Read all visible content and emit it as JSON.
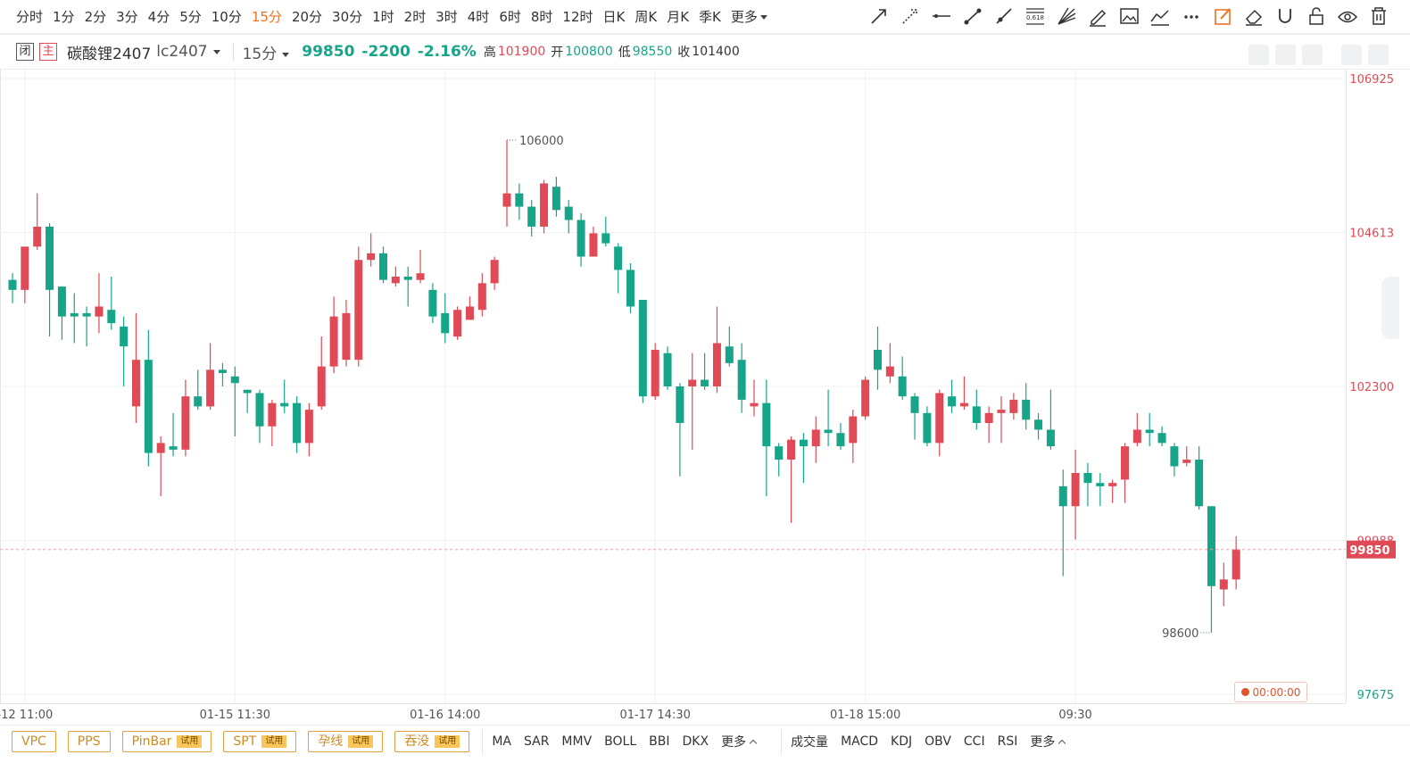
{
  "toolbar": {
    "periods": [
      "分时",
      "1分",
      "2分",
      "3分",
      "4分",
      "5分",
      "10分",
      "15分",
      "20分",
      "30分",
      "1时",
      "2时",
      "3时",
      "4时",
      "6时",
      "8时",
      "12时",
      "日K",
      "周K",
      "月K",
      "季K",
      "更多"
    ],
    "active": "15分",
    "fib": "0.618"
  },
  "header": {
    "status": "闭",
    "main": "主",
    "name": "碳酸锂2407",
    "code": "lc2407",
    "period": "15分",
    "change": "-2200",
    "change_pct": "-2.16%",
    "high_label": "高",
    "high": "101900",
    "open_label": "开",
    "open": "100800",
    "low_label": "低",
    "low": "98550",
    "close_label": "收",
    "close": "101400"
  },
  "chart_data": {
    "type": "candlestick",
    "categories": [
      null,
      "-12 11:00",
      null,
      null,
      null,
      null,
      null,
      null,
      null,
      null,
      null,
      null,
      null,
      null,
      null,
      null,
      null,
      null,
      "01-15 11:30",
      null,
      null,
      null,
      null,
      null,
      null,
      null,
      null,
      null,
      null,
      null,
      null,
      null,
      null,
      null,
      null,
      "01-16 14:00",
      null,
      null,
      null,
      null,
      null,
      null,
      null,
      null,
      null,
      null,
      null,
      null,
      null,
      null,
      null,
      null,
      "01-17 14:30",
      null,
      null,
      null,
      null,
      null,
      null,
      null,
      null,
      null,
      null,
      null,
      null,
      null,
      null,
      null,
      null,
      "01-18 15:00",
      null,
      null,
      null,
      null,
      null,
      null,
      null,
      null,
      null,
      null,
      null,
      null,
      null,
      null,
      null,
      null,
      "09:30",
      null,
      null,
      null,
      null,
      null,
      null,
      null,
      null,
      null,
      null,
      null,
      null,
      null
    ],
    "open": [
      103900,
      103750,
      104400,
      104700,
      103800,
      103400,
      103400,
      103350,
      103450,
      103200,
      102000,
      102700,
      101300,
      101400,
      101350,
      102150,
      102000,
      102550,
      102450,
      102250,
      102200,
      101700,
      102050,
      102050,
      101450,
      102000,
      102600,
      102700,
      102700,
      104200,
      104300,
      103850,
      103950,
      103900,
      103750,
      103400,
      103050,
      103300,
      103450,
      103850,
      105000,
      105200,
      105000,
      104700,
      105300,
      105000,
      104800,
      104250,
      104600,
      104400,
      104050,
      103600,
      102150,
      102800,
      102300,
      102300,
      102400,
      102300,
      102900,
      102700,
      102000,
      102050,
      101400,
      101200,
      101500,
      101400,
      101650,
      101600,
      101450,
      101850,
      102850,
      102450,
      102450,
      102150,
      101900,
      101450,
      102150,
      102000,
      102000,
      101750,
      101900,
      101900,
      102100,
      101800,
      101650,
      100800,
      100500,
      101000,
      100850,
      100800,
      100900,
      101450,
      101650,
      101600,
      101400,
      101150,
      101200,
      100500,
      99250,
      99400
    ],
    "high": [
      104000,
      104400,
      105200,
      104750,
      103800,
      103700,
      103500,
      104000,
      103950,
      103350,
      103400,
      103150,
      101550,
      101900,
      102400,
      102550,
      102950,
      102650,
      102600,
      102250,
      102250,
      102100,
      102400,
      102150,
      102050,
      103050,
      103650,
      103600,
      104400,
      104600,
      104400,
      104100,
      104100,
      104350,
      103850,
      103700,
      103500,
      103650,
      104000,
      104250,
      106000,
      105350,
      105100,
      105400,
      105450,
      105100,
      104900,
      104700,
      104850,
      104450,
      104150,
      103600,
      102950,
      102900,
      102350,
      102800,
      102800,
      103500,
      103200,
      102950,
      102400,
      102400,
      101450,
      101550,
      101600,
      101850,
      102250,
      101750,
      101950,
      102450,
      103200,
      102950,
      102750,
      102200,
      102000,
      102250,
      102400,
      102450,
      102250,
      102000,
      102150,
      102200,
      102350,
      101900,
      102250,
      101050,
      101350,
      101150,
      101000,
      100900,
      101450,
      101900,
      101900,
      101700,
      101450,
      101400,
      101400,
      100500,
      99650,
      100050
    ],
    "low": [
      103550,
      103550,
      104350,
      103050,
      103000,
      102950,
      102900,
      103100,
      103150,
      102300,
      101750,
      101100,
      100650,
      101250,
      101250,
      101950,
      101950,
      102300,
      101550,
      101900,
      101450,
      101400,
      101900,
      101300,
      101250,
      101950,
      102500,
      102600,
      102600,
      104100,
      103850,
      103800,
      103500,
      103850,
      103250,
      102950,
      103000,
      103300,
      103350,
      103750,
      104700,
      104800,
      104550,
      104600,
      104850,
      104600,
      104100,
      104250,
      104400,
      103700,
      103400,
      102050,
      102100,
      102250,
      100950,
      101350,
      102250,
      102200,
      102600,
      101900,
      101850,
      100650,
      100950,
      100250,
      100850,
      101150,
      101400,
      101350,
      101150,
      101800,
      102250,
      102350,
      102100,
      101500,
      101400,
      101250,
      101900,
      101950,
      101650,
      101450,
      101450,
      101800,
      101650,
      101500,
      101350,
      99450,
      100000,
      100500,
      100500,
      100550,
      100550,
      101400,
      101400,
      101400,
      100950,
      101100,
      100450,
      98600,
      99000,
      99250
    ],
    "close": [
      103750,
      104400,
      104700,
      103750,
      103350,
      103350,
      103350,
      103500,
      103250,
      102900,
      102700,
      101300,
      101450,
      101350,
      102150,
      102000,
      102550,
      102500,
      102350,
      102200,
      101700,
      102050,
      102000,
      101450,
      101950,
      102600,
      103350,
      103400,
      104200,
      104300,
      103900,
      103950,
      103900,
      104000,
      103350,
      103100,
      103450,
      103500,
      103850,
      104200,
      105200,
      105000,
      104700,
      105350,
      104950,
      104800,
      104250,
      104600,
      104450,
      104050,
      103500,
      102150,
      102850,
      102300,
      101750,
      102400,
      102300,
      102950,
      102650,
      102100,
      102050,
      101400,
      101200,
      101500,
      101400,
      101650,
      101600,
      101400,
      101850,
      102400,
      102550,
      102600,
      102150,
      101900,
      101450,
      102200,
      102000,
      102050,
      101750,
      101900,
      101950,
      102100,
      101800,
      101650,
      101400,
      100500,
      101000,
      100850,
      100800,
      100850,
      101400,
      101650,
      101600,
      101450,
      101100,
      101200,
      100500,
      99300,
      99400,
      99850
    ],
    "up_color": "#e04a56",
    "down_color": "#17a589",
    "ylim": [
      97675,
      106925
    ],
    "yticks": [
      106925,
      {
        "value": 104612.5,
        "label": "104613"
      },
      102300,
      {
        "value": 99987.5,
        "label": "99988"
      },
      97675
    ],
    "grid": true,
    "current_price": 99850
  },
  "bottom": {
    "patterns": [
      {
        "name": "VPC"
      },
      {
        "name": "PPS"
      },
      {
        "name": "PinBar",
        "tag": "试用"
      },
      {
        "name": "SPT",
        "tag": "试用"
      },
      {
        "name": "孕线",
        "tag": "试用"
      },
      {
        "name": "吞没",
        "tag": "试用"
      }
    ],
    "main_indicators": [
      "MA",
      "SAR",
      "MMV",
      "BOLL",
      "BBI",
      "DKX",
      "更多"
    ],
    "sub_indicators": [
      "成交量",
      "MACD",
      "KDJ",
      "OBV",
      "CCI",
      "RSI",
      "更多"
    ],
    "timer": "00:00:00"
  }
}
